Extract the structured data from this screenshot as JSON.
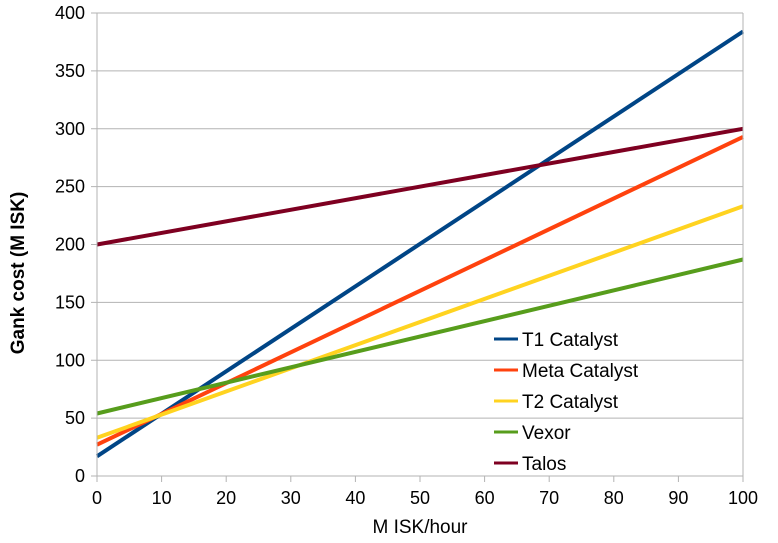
{
  "chart_data": {
    "type": "line",
    "xlabel": "M ISK/hour",
    "ylabel": "Gank cost (M ISK)",
    "xlim": [
      0,
      100
    ],
    "ylim": [
      0,
      400
    ],
    "xticks": [
      0,
      10,
      20,
      30,
      40,
      50,
      60,
      70,
      80,
      90,
      100
    ],
    "yticks": [
      0,
      50,
      100,
      150,
      200,
      250,
      300,
      350,
      400
    ],
    "grid": "horizontal",
    "legend_position": "right-center",
    "series": [
      {
        "name": "T1 Catalyst",
        "color": "#004586",
        "x": [
          0,
          100
        ],
        "values": [
          17,
          384
        ]
      },
      {
        "name": "Meta Catalyst",
        "color": "#ff420e",
        "x": [
          0,
          100
        ],
        "values": [
          27,
          293
        ]
      },
      {
        "name": "T2 Catalyst",
        "color": "#ffd320",
        "x": [
          0,
          100
        ],
        "values": [
          33,
          233
        ]
      },
      {
        "name": "Vexor",
        "color": "#579d1c",
        "x": [
          0,
          100
        ],
        "values": [
          54,
          187
        ]
      },
      {
        "name": "Talos",
        "color": "#7e0021",
        "x": [
          0,
          100
        ],
        "values": [
          200,
          300
        ]
      }
    ]
  }
}
